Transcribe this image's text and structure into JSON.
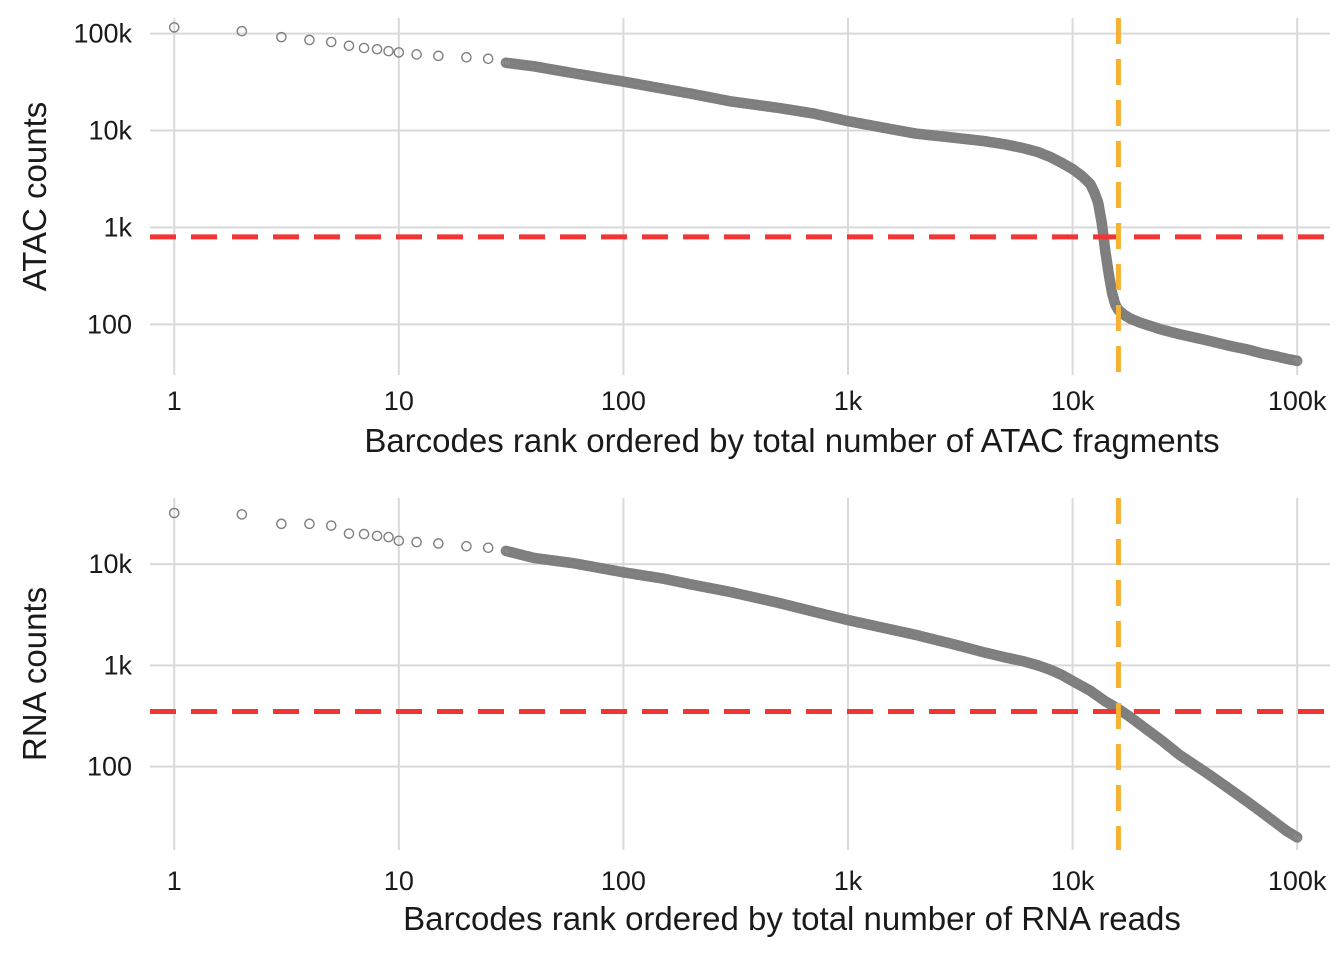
{
  "chart_data": [
    {
      "type": "scatter",
      "id": "atac",
      "xlabel": "Barcodes rank ordered by total number of ATAC fragments",
      "ylabel": "ATAC counts",
      "x_scale": "log10",
      "y_scale": "log10",
      "xlim": [
        0.78,
        140000
      ],
      "ylim": [
        30,
        145000
      ],
      "x_ticks": [
        {
          "value": 1,
          "label": "1"
        },
        {
          "value": 10,
          "label": "10"
        },
        {
          "value": 100,
          "label": "100"
        },
        {
          "value": 1000,
          "label": "1k"
        },
        {
          "value": 10000,
          "label": "10k"
        },
        {
          "value": 100000,
          "label": "100k"
        }
      ],
      "y_ticks": [
        {
          "value": 100,
          "label": "100"
        },
        {
          "value": 1000,
          "label": "1k"
        },
        {
          "value": 10000,
          "label": "10k"
        },
        {
          "value": 100000,
          "label": "100k"
        }
      ],
      "series": [
        {
          "points": [
            [
              1,
              116000
            ],
            [
              2,
              106000
            ],
            [
              3,
              92000
            ],
            [
              4,
              86000
            ],
            [
              5,
              82000
            ],
            [
              6,
              75000
            ],
            [
              7,
              71000
            ],
            [
              8,
              69000
            ],
            [
              9,
              66000
            ],
            [
              10,
              64000
            ],
            [
              12,
              61000
            ],
            [
              15,
              59000
            ],
            [
              20,
              57000
            ],
            [
              25,
              55000
            ],
            [
              30,
              50000
            ],
            [
              40,
              46000
            ],
            [
              60,
              39000
            ],
            [
              100,
              32000
            ],
            [
              150,
              27000
            ],
            [
              200,
              24000
            ],
            [
              300,
              20000
            ],
            [
              500,
              17000
            ],
            [
              700,
              15000
            ],
            [
              1000,
              12500
            ],
            [
              1500,
              10500
            ],
            [
              2000,
              9300
            ],
            [
              3000,
              8400
            ],
            [
              4000,
              7800
            ],
            [
              5000,
              7200
            ],
            [
              6000,
              6600
            ],
            [
              7000,
              6000
            ],
            [
              8000,
              5300
            ],
            [
              9000,
              4600
            ],
            [
              10000,
              4000
            ],
            [
              11000,
              3400
            ],
            [
              12000,
              2800
            ],
            [
              12500,
              2300
            ],
            [
              13000,
              1800
            ],
            [
              13500,
              1100
            ],
            [
              14000,
              560
            ],
            [
              14500,
              330
            ],
            [
              15000,
              210
            ],
            [
              15500,
              160
            ],
            [
              16000,
              140
            ],
            [
              17000,
              125
            ],
            [
              18000,
              115
            ],
            [
              20000,
              104
            ],
            [
              25000,
              88
            ],
            [
              30000,
              79
            ],
            [
              40000,
              68
            ],
            [
              50000,
              60
            ],
            [
              60000,
              55
            ],
            [
              70000,
              50
            ],
            [
              80000,
              47
            ],
            [
              90000,
              44
            ],
            [
              100000,
              42
            ]
          ]
        }
      ],
      "thresholds": {
        "y": 800,
        "x": 16000
      },
      "point_color": "#7f7f7f",
      "threshold_y_color": "#f03535",
      "threshold_x_color": "#f5b233",
      "grid": true
    },
    {
      "type": "scatter",
      "id": "rna",
      "xlabel": "Barcodes rank ordered by total number of RNA reads",
      "ylabel": "RNA counts",
      "x_scale": "log10",
      "y_scale": "log10",
      "xlim": [
        0.78,
        140000
      ],
      "ylim": [
        15,
        45000
      ],
      "x_ticks": [
        {
          "value": 1,
          "label": "1"
        },
        {
          "value": 10,
          "label": "10"
        },
        {
          "value": 100,
          "label": "100"
        },
        {
          "value": 1000,
          "label": "1k"
        },
        {
          "value": 10000,
          "label": "10k"
        },
        {
          "value": 100000,
          "label": "100k"
        }
      ],
      "y_ticks": [
        {
          "value": 100,
          "label": "100"
        },
        {
          "value": 1000,
          "label": "1k"
        },
        {
          "value": 10000,
          "label": "10k"
        }
      ],
      "series": [
        {
          "points": [
            [
              1,
              32000
            ],
            [
              2,
              31000
            ],
            [
              3,
              25000
            ],
            [
              4,
              25000
            ],
            [
              5,
              24000
            ],
            [
              6,
              20000
            ],
            [
              7,
              19800
            ],
            [
              8,
              19000
            ],
            [
              9,
              18500
            ],
            [
              10,
              17000
            ],
            [
              12,
              16500
            ],
            [
              15,
              16000
            ],
            [
              20,
              15000
            ],
            [
              25,
              14500
            ],
            [
              30,
              13500
            ],
            [
              40,
              11500
            ],
            [
              60,
              10200
            ],
            [
              100,
              8300
            ],
            [
              150,
              7200
            ],
            [
              200,
              6300
            ],
            [
              300,
              5300
            ],
            [
              500,
              4100
            ],
            [
              700,
              3400
            ],
            [
              1000,
              2800
            ],
            [
              1500,
              2300
            ],
            [
              2000,
              2000
            ],
            [
              3000,
              1600
            ],
            [
              4000,
              1350
            ],
            [
              5000,
              1200
            ],
            [
              6000,
              1100
            ],
            [
              7000,
              1000
            ],
            [
              8000,
              900
            ],
            [
              9000,
              800
            ],
            [
              10000,
              700
            ],
            [
              12000,
              560
            ],
            [
              14000,
              440
            ],
            [
              16000,
              370
            ],
            [
              18000,
              310
            ],
            [
              20000,
              260
            ],
            [
              25000,
              180
            ],
            [
              30000,
              130
            ],
            [
              40000,
              85
            ],
            [
              50000,
              60
            ],
            [
              60000,
              45
            ],
            [
              70000,
              35
            ],
            [
              80000,
              28
            ],
            [
              90000,
              23
            ],
            [
              100000,
              20
            ]
          ]
        }
      ],
      "thresholds": {
        "y": 350,
        "x": 16000
      },
      "point_color": "#7f7f7f",
      "threshold_y_color": "#f03535",
      "threshold_x_color": "#f5b233",
      "grid": true
    }
  ]
}
